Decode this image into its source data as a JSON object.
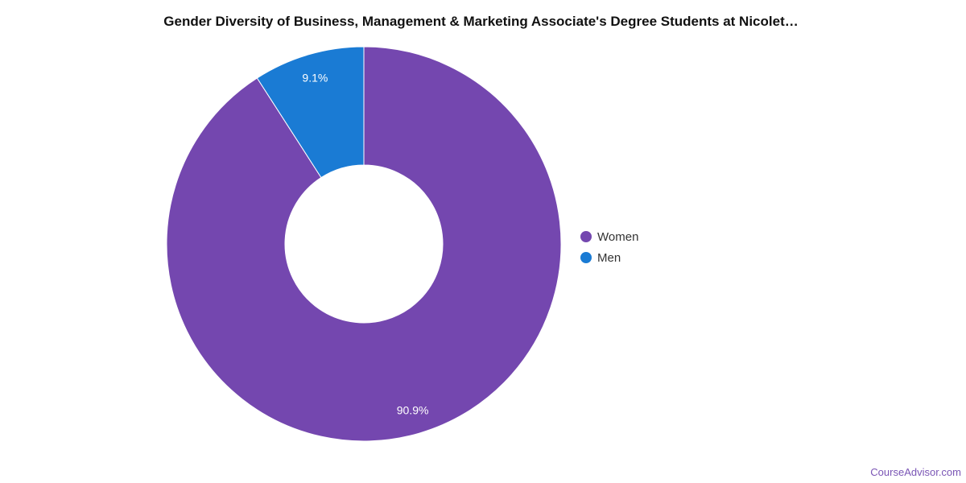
{
  "chart_data": {
    "type": "pie",
    "donut": true,
    "title": "Gender Diversity of Business, Management & Marketing Associate's Degree Students at Nicolet…",
    "slices": [
      {
        "label": "Women",
        "value": 90.9,
        "display": "90.9%",
        "color": "#7447af"
      },
      {
        "label": "Men",
        "value": 9.1,
        "display": "9.1%",
        "color": "#1a7bd4"
      }
    ],
    "legend_position": "right"
  },
  "watermark": "CourseAdvisor.com"
}
